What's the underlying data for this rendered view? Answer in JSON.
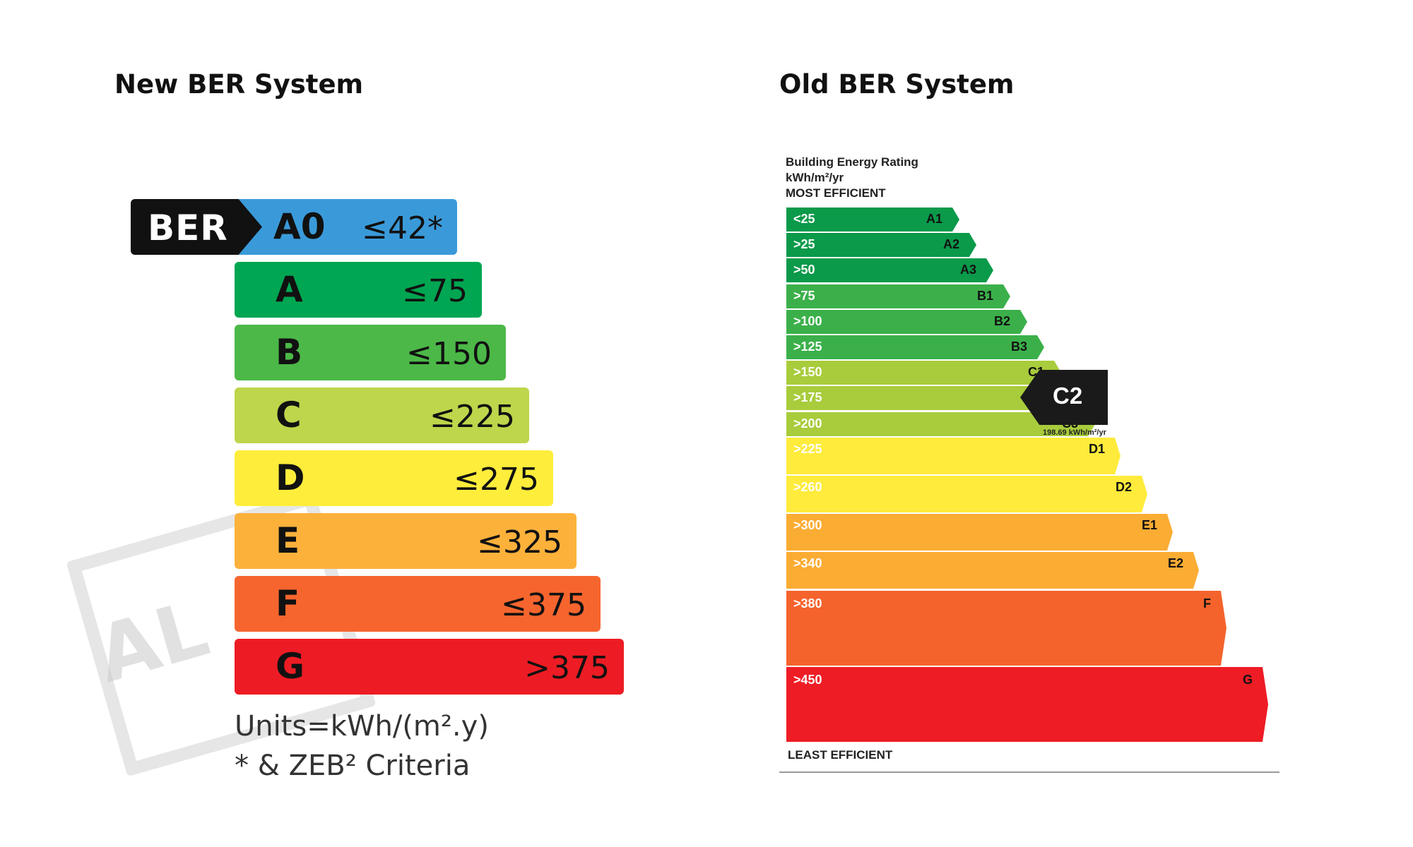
{
  "new_system": {
    "title": "New BER System",
    "badge": "BER",
    "watermark": "AL",
    "bands": [
      {
        "label": "A0",
        "value": "≤42*",
        "color": "#3a9ad9"
      },
      {
        "label": "A",
        "value": "≤75",
        "color": "#00a651"
      },
      {
        "label": "B",
        "value": "≤150",
        "color": "#4cb848"
      },
      {
        "label": "C",
        "value": "≤225",
        "color": "#bdd64b"
      },
      {
        "label": "D",
        "value": "≤275",
        "color": "#ffed3b"
      },
      {
        "label": "E",
        "value": "≤325",
        "color": "#fcb13b"
      },
      {
        "label": "F",
        "value": "≤375",
        "color": "#f7652e"
      },
      {
        "label": "G",
        "value": ">375",
        "color": "#ed1c24"
      }
    ],
    "units": "Units=kWh/(m².y)",
    "note": "* & ZEB² Criteria"
  },
  "old_system": {
    "title": "Old BER System",
    "header": [
      "Building Energy Rating",
      "kWh/m²/yr",
      "MOST EFFICIENT"
    ],
    "bands": [
      {
        "value": "<25",
        "class": "A1",
        "color": "#0a9a4a"
      },
      {
        "value": ">25",
        "class": "A2",
        "color": "#0a9a4a"
      },
      {
        "value": ">50",
        "class": "A3",
        "color": "#0a9a4a"
      },
      {
        "value": ">75",
        "class": "B1",
        "color": "#3bb04a"
      },
      {
        "value": ">100",
        "class": "B2",
        "color": "#3bb04a"
      },
      {
        "value": ">125",
        "class": "B3",
        "color": "#3bb04a"
      },
      {
        "value": ">150",
        "class": "C1",
        "color": "#a8cc3c"
      },
      {
        "value": ">175",
        "class": "C2",
        "color": "#a8cc3c"
      },
      {
        "value": ">200",
        "class": "C3",
        "color": "#a8cc3c"
      },
      {
        "value": ">225",
        "class": "D1",
        "color": "#ffeb3b"
      },
      {
        "value": ">260",
        "class": "D2",
        "color": "#ffeb3b"
      },
      {
        "value": ">300",
        "class": "E1",
        "color": "#fbac33"
      },
      {
        "value": ">340",
        "class": "E2",
        "color": "#fbac33"
      },
      {
        "value": ">380",
        "class": "F",
        "color": "#f5632c"
      },
      {
        "value": ">450",
        "class": "G",
        "color": "#ee1c25"
      }
    ],
    "rating": {
      "class": "C2",
      "value": "198.69 kWh/m²/yr"
    },
    "footer": "LEAST EFFICIENT"
  }
}
